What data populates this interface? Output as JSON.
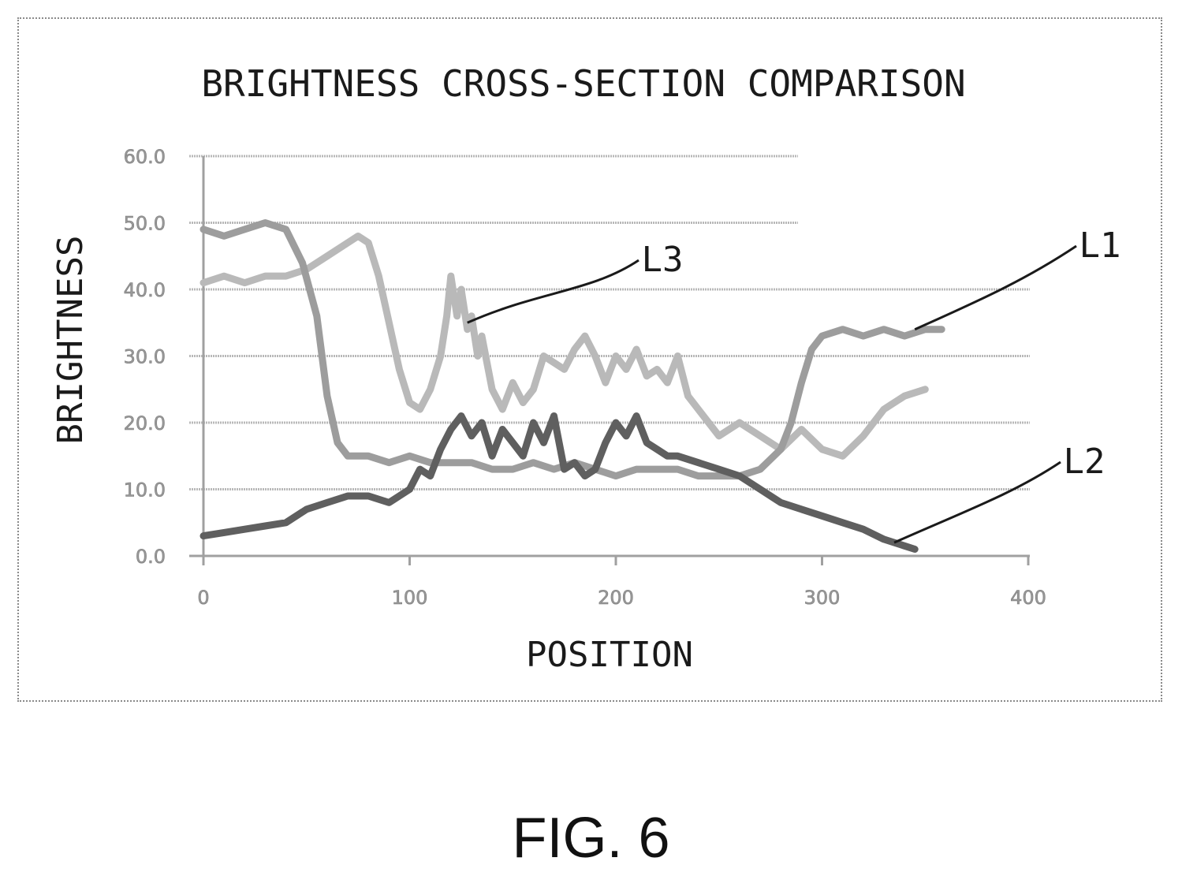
{
  "figure": {
    "label": "FIG. 6"
  },
  "chart_data": {
    "type": "line",
    "title": "BRIGHTNESS CROSS-SECTION COMPARISON",
    "xlabel": "POSITION",
    "ylabel": "BRIGHTNESS",
    "xlim": [
      0,
      400
    ],
    "ylim": [
      0,
      60
    ],
    "xticks": [
      "0",
      "100",
      "200",
      "300",
      "400"
    ],
    "yticks": [
      "0.0",
      "10.0",
      "20.0",
      "30.0",
      "40.0",
      "50.0",
      "60.0"
    ],
    "grid": true,
    "colors": {
      "L1": "#9d9d9d",
      "L2": "#5f5f5f",
      "L3": "#b9b9b9"
    },
    "annotations": [
      {
        "label": "L1",
        "series": "L1",
        "x": 345,
        "y": 34
      },
      {
        "label": "L2",
        "series": "L2",
        "x": 335,
        "y": 2
      },
      {
        "label": "L3",
        "series": "L3",
        "x": 128,
        "y": 35
      }
    ],
    "series": [
      {
        "name": "L1",
        "x": [
          0,
          10,
          20,
          30,
          40,
          48,
          55,
          60,
          65,
          70,
          80,
          90,
          100,
          110,
          120,
          130,
          140,
          150,
          160,
          170,
          180,
          190,
          200,
          210,
          220,
          230,
          240,
          250,
          260,
          270,
          280,
          285,
          290,
          295,
          300,
          310,
          320,
          330,
          340,
          350,
          358
        ],
        "y": [
          49,
          48,
          49,
          50,
          49,
          44,
          36,
          24,
          17,
          15,
          15,
          14,
          15,
          14,
          14,
          14,
          13,
          13,
          14,
          13,
          14,
          13,
          12,
          13,
          13,
          13,
          12,
          12,
          12,
          13,
          16,
          20,
          26,
          31,
          33,
          34,
          33,
          34,
          33,
          34,
          34
        ]
      },
      {
        "name": "L2",
        "x": [
          0,
          10,
          20,
          30,
          40,
          50,
          60,
          70,
          80,
          90,
          100,
          105,
          110,
          115,
          120,
          125,
          130,
          135,
          140,
          145,
          150,
          155,
          160,
          165,
          170,
          175,
          180,
          185,
          190,
          195,
          200,
          205,
          210,
          215,
          220,
          225,
          230,
          240,
          250,
          260,
          270,
          280,
          290,
          300,
          310,
          320,
          330,
          340,
          345
        ],
        "y": [
          3,
          3.5,
          4,
          4.5,
          5,
          7,
          8,
          9,
          9,
          8,
          10,
          13,
          12,
          16,
          19,
          21,
          18,
          20,
          15,
          19,
          17,
          15,
          20,
          17,
          21,
          13,
          14,
          12,
          13,
          17,
          20,
          18,
          21,
          17,
          16,
          15,
          15,
          14,
          13,
          12,
          10,
          8,
          7,
          6,
          5,
          4,
          2.5,
          1.5,
          1
        ]
      },
      {
        "name": "L3",
        "x": [
          0,
          10,
          20,
          30,
          40,
          50,
          60,
          70,
          75,
          80,
          85,
          90,
          95,
          100,
          105,
          110,
          115,
          118,
          120,
          123,
          125,
          128,
          130,
          133,
          135,
          140,
          145,
          150,
          155,
          160,
          165,
          170,
          175,
          180,
          185,
          190,
          195,
          200,
          205,
          210,
          215,
          220,
          225,
          230,
          235,
          240,
          250,
          260,
          270,
          280,
          290,
          300,
          310,
          320,
          330,
          340,
          350
        ],
        "y": [
          41,
          42,
          41,
          42,
          42,
          43,
          45,
          47,
          48,
          47,
          42,
          35,
          28,
          23,
          22,
          25,
          30,
          36,
          42,
          36,
          40,
          34,
          36,
          30,
          33,
          25,
          22,
          26,
          23,
          25,
          30,
          29,
          28,
          31,
          33,
          30,
          26,
          30,
          28,
          31,
          27,
          28,
          26,
          30,
          24,
          22,
          18,
          20,
          18,
          16,
          19,
          16,
          15,
          18,
          22,
          24,
          25
        ]
      }
    ]
  }
}
